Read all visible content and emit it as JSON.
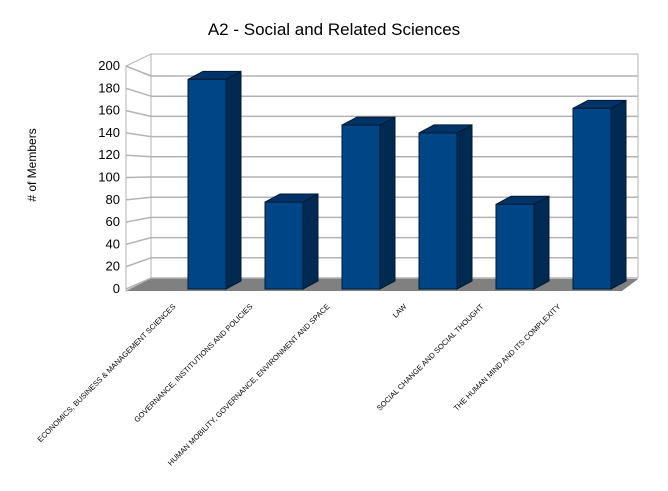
{
  "chart_data": {
    "type": "bar",
    "title": "A2 - Social and Related Sciences",
    "xlabel": "",
    "ylabel": "# of Members",
    "ylim": [
      0,
      200
    ],
    "yticks": [
      0,
      20,
      40,
      60,
      80,
      100,
      120,
      140,
      160,
      180,
      200
    ],
    "grid": true,
    "style": "3d",
    "categories": [
      "ECONOMICS, BUSINESS & MANAGEMENT SCIENCES",
      "GOVERNANCE, INSTITUTIONS AND POLICIES",
      "HUMAN MOBILITY, GOVERNANCE, ENVIRONMENT AND SPACE",
      "LAW",
      "SOCIAL CHANGE AND SOCIAL THOUGHT",
      "THE HUMAN MIND AND ITS COMPLEXITY"
    ],
    "values": [
      188,
      78,
      147,
      140,
      76,
      162
    ],
    "colors": {
      "bar_front": "#004586",
      "bar_side": "#002a52",
      "bar_top": "#003368",
      "floor": "#808080",
      "grid": "#b3b3b3"
    }
  }
}
